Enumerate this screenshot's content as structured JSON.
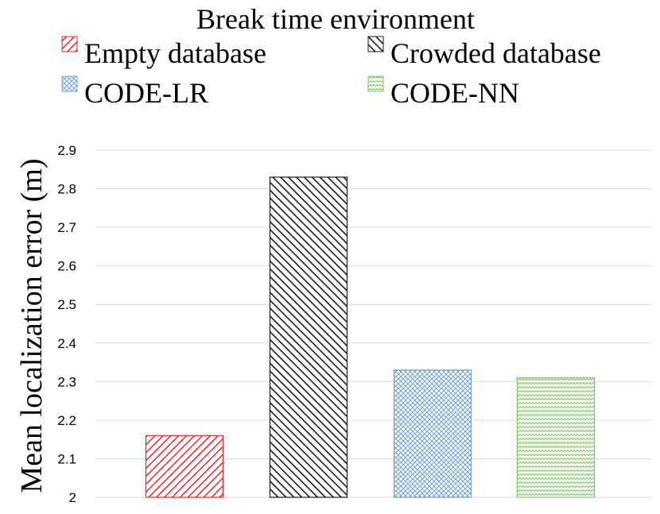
{
  "chart_data": {
    "type": "bar",
    "title": "Break time environment",
    "xlabel": "",
    "ylabel": "Mean localization error (m)",
    "ylim": [
      2,
      2.9
    ],
    "yticks": [
      "2",
      "2.1",
      "2.2",
      "2.3",
      "2.4",
      "2.5",
      "2.6",
      "2.7",
      "2.8",
      "2.9"
    ],
    "grid": true,
    "legend_position": "top",
    "series": [
      {
        "name": "Empty database",
        "value": 2.16,
        "color": "#e8262a",
        "pattern": "diag-down"
      },
      {
        "name": "Crowded database",
        "value": 2.83,
        "color": "#1a1a1a",
        "pattern": "diag-up"
      },
      {
        "name": "CODE-LR",
        "value": 2.33,
        "color": "#6f9ed8",
        "pattern": "crosshatch"
      },
      {
        "name": "CODE-NN",
        "value": 2.31,
        "color": "#7cc65a",
        "pattern": "zigzag"
      }
    ]
  }
}
